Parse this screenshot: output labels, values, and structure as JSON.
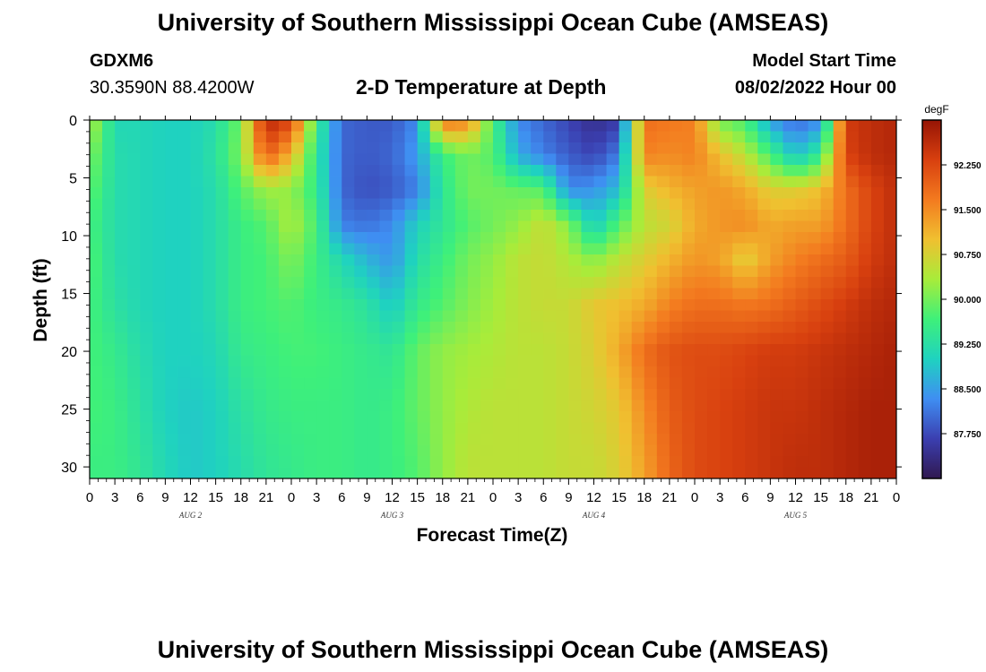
{
  "page": {
    "title": "University of Southern Mississippi Ocean Cube (AMSEAS)",
    "title_repeat": "University of Southern Mississippi Ocean Cube (AMSEAS)",
    "station": "GDXM6",
    "coords": "30.3590N  88.4200W",
    "model_start_label": "Model Start Time",
    "model_start_value": "08/02/2022 Hour 00"
  },
  "chart_data": {
    "type": "heatmap",
    "title": "2-D Temperature at Depth",
    "xlabel": "Forecast Time(Z)",
    "ylabel": "Depth (ft)",
    "x_hours": [
      0,
      96
    ],
    "x_ticks": [
      "0",
      "3",
      "6",
      "9",
      "12",
      "15",
      "18",
      "21",
      "0",
      "3",
      "6",
      "9",
      "12",
      "15",
      "18",
      "21",
      "0",
      "3",
      "6",
      "9",
      "12",
      "15",
      "18",
      "21",
      "0",
      "3",
      "6",
      "9",
      "12",
      "15",
      "18",
      "21",
      "0"
    ],
    "day_labels": [
      "AUG 2",
      "AUG 3",
      "AUG 4",
      "AUG 5"
    ],
    "y_ticks": [
      0,
      5,
      10,
      15,
      20,
      25,
      30
    ],
    "ylim": [
      0,
      31
    ],
    "colorbar": {
      "unit": "degF",
      "range": [
        87.0,
        93.0
      ],
      "ticks": [
        "92.250",
        "91.500",
        "90.750",
        "90.000",
        "89.250",
        "88.500",
        "87.750"
      ],
      "tick_values": [
        92.25,
        91.5,
        90.75,
        90.0,
        89.25,
        88.5,
        87.75
      ],
      "colors": [
        "#301850",
        "#3b3fb0",
        "#3f8ef2",
        "#1fd2c0",
        "#3ef07a",
        "#a8ec3a",
        "#f0c030",
        "#f37a1f",
        "#d8400f",
        "#961405"
      ]
    },
    "depths": [
      0,
      3,
      6,
      9,
      12,
      16,
      20,
      25,
      30
    ],
    "times": [
      0,
      3,
      6,
      9,
      12,
      15,
      18,
      21,
      24,
      27,
      30,
      33,
      36,
      39,
      42,
      45,
      48,
      51,
      54,
      57,
      60,
      63,
      66,
      69,
      72,
      75,
      78,
      81,
      84,
      87,
      90,
      93,
      96
    ],
    "values": [
      [
        90.5,
        89.1,
        89.1,
        89.0,
        89.0,
        89.2,
        90.0,
        92.7,
        92.3,
        89.6,
        88.0,
        87.9,
        87.9,
        88.3,
        91.8,
        91.6,
        89.7,
        88.3,
        88.0,
        87.7,
        87.4,
        87.6,
        91.8,
        91.7,
        91.6,
        90.0,
        89.7,
        88.5,
        88.0,
        88.3,
        92.4,
        92.6,
        92.7
      ],
      [
        90.1,
        89.2,
        89.1,
        89.0,
        89.0,
        89.3,
        90.1,
        92.0,
        91.1,
        89.4,
        88.0,
        87.9,
        88.0,
        88.5,
        89.6,
        90.0,
        89.8,
        88.6,
        88.2,
        87.9,
        87.7,
        88.2,
        91.6,
        91.5,
        91.6,
        91.0,
        90.5,
        89.7,
        88.8,
        89.5,
        92.3,
        92.6,
        92.7
      ],
      [
        89.9,
        89.2,
        89.1,
        89.0,
        89.0,
        89.2,
        89.8,
        90.3,
        90.2,
        89.5,
        88.0,
        87.8,
        87.9,
        88.2,
        89.4,
        90.0,
        90.0,
        89.9,
        89.8,
        88.3,
        88.4,
        88.8,
        90.8,
        91.1,
        91.3,
        91.4,
        91.2,
        90.8,
        90.8,
        91.0,
        91.8,
        92.3,
        92.6
      ],
      [
        89.7,
        89.2,
        89.1,
        89.0,
        89.0,
        89.2,
        89.6,
        89.8,
        90.4,
        89.7,
        88.2,
        88.1,
        88.3,
        89.0,
        89.4,
        89.8,
        90.0,
        90.2,
        90.6,
        90.1,
        88.9,
        89.8,
        90.5,
        90.7,
        91.2,
        91.4,
        91.5,
        91.2,
        91.3,
        91.3,
        91.8,
        92.3,
        92.6
      ],
      [
        89.8,
        89.2,
        89.1,
        89.0,
        89.0,
        89.2,
        89.6,
        89.7,
        90.1,
        89.6,
        89.1,
        88.7,
        88.4,
        89.2,
        89.6,
        90.0,
        90.2,
        90.5,
        90.6,
        90.4,
        90.1,
        90.5,
        90.8,
        91.1,
        91.4,
        91.3,
        90.8,
        91.3,
        91.6,
        91.8,
        92.0,
        92.4,
        92.6
      ],
      [
        89.7,
        89.3,
        89.1,
        89.0,
        89.0,
        89.2,
        89.6,
        89.7,
        89.8,
        89.6,
        89.5,
        89.3,
        88.9,
        89.5,
        89.8,
        90.1,
        90.3,
        90.5,
        90.6,
        90.6,
        90.9,
        91.0,
        91.2,
        91.6,
        91.8,
        91.8,
        91.7,
        91.8,
        92.0,
        92.2,
        92.4,
        92.6,
        92.7
      ],
      [
        89.7,
        89.5,
        89.2,
        89.0,
        89.0,
        89.1,
        89.5,
        89.6,
        89.7,
        89.7,
        89.6,
        89.5,
        89.4,
        89.9,
        90.2,
        90.3,
        90.4,
        90.5,
        90.5,
        90.6,
        90.8,
        91.2,
        91.8,
        92.1,
        92.2,
        92.2,
        92.3,
        92.4,
        92.4,
        92.5,
        92.6,
        92.7,
        92.8
      ],
      [
        89.7,
        89.6,
        89.3,
        89.0,
        88.9,
        89.0,
        89.3,
        89.5,
        89.6,
        89.6,
        89.6,
        89.5,
        89.6,
        89.9,
        90.2,
        90.4,
        90.5,
        90.5,
        90.5,
        90.6,
        90.7,
        90.9,
        91.5,
        92.0,
        92.2,
        92.3,
        92.4,
        92.5,
        92.5,
        92.6,
        92.7,
        92.8,
        92.8
      ],
      [
        89.6,
        89.6,
        89.4,
        89.1,
        88.9,
        89.0,
        89.2,
        89.4,
        89.5,
        89.6,
        89.6,
        89.5,
        89.6,
        89.8,
        90.2,
        90.5,
        90.5,
        90.5,
        90.5,
        90.6,
        90.6,
        90.8,
        91.3,
        91.9,
        92.2,
        92.3,
        92.4,
        92.5,
        92.6,
        92.6,
        92.7,
        92.8,
        92.8
      ]
    ]
  }
}
